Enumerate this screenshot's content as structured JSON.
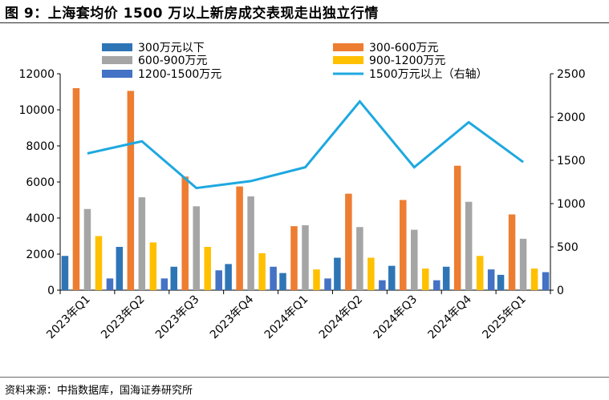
{
  "title": "图 9：上海套均价 1500 万以上新房成交表现走出独立行情",
  "source": "资料来源：中指数据库，国海证券研究所",
  "colors": {
    "s300": "#2e75b6",
    "s300_600": "#ed7d31",
    "s600_900": "#a5a5a5",
    "s900_1200": "#ffc000",
    "s1200_1500": "#4472c4",
    "line1500": "#1ea8e0"
  },
  "chart_data": {
    "type": "bar",
    "categories": [
      "2023年Q1",
      "2023年Q2",
      "2023年Q3",
      "2023年Q4",
      "2024年Q1",
      "2024年Q2",
      "2024年Q3",
      "2024年Q4",
      "2025年Q1"
    ],
    "series": [
      {
        "name": "300万元以下",
        "values": [
          1900,
          2400,
          1300,
          1450,
          950,
          1800,
          1350,
          1300,
          850
        ],
        "colorKey": "s300"
      },
      {
        "name": "300-600万元",
        "values": [
          11200,
          11050,
          6300,
          5750,
          3550,
          5350,
          5000,
          6900,
          4200
        ],
        "colorKey": "s300_600"
      },
      {
        "name": "600-900万元",
        "values": [
          4500,
          5150,
          4650,
          5200,
          3600,
          3500,
          3350,
          4900,
          2850
        ],
        "colorKey": "s600_900"
      },
      {
        "name": "900-1200万元",
        "values": [
          3000,
          2650,
          2400,
          2050,
          1150,
          1800,
          1200,
          1900,
          1200
        ],
        "colorKey": "s900_1200"
      },
      {
        "name": "1200-1500万元",
        "values": [
          650,
          650,
          1100,
          1300,
          650,
          550,
          550,
          1150,
          1000
        ],
        "colorKey": "s1200_1500"
      }
    ],
    "line": {
      "name": "1500万元以上（右轴）",
      "values": [
        1580,
        1720,
        1180,
        1260,
        1420,
        2180,
        1420,
        1940,
        1480
      ],
      "colorKey": "line1500",
      "axis": "right"
    },
    "ylim": [
      0,
      12000
    ],
    "yticks": [
      "0",
      "2000",
      "4000",
      "6000",
      "8000",
      "10000",
      "12000"
    ],
    "y2lim": [
      0,
      2500
    ],
    "y2ticks": [
      "0",
      "500",
      "1000",
      "1500",
      "2000",
      "2500"
    ],
    "legend_position": "top",
    "grid": false
  }
}
